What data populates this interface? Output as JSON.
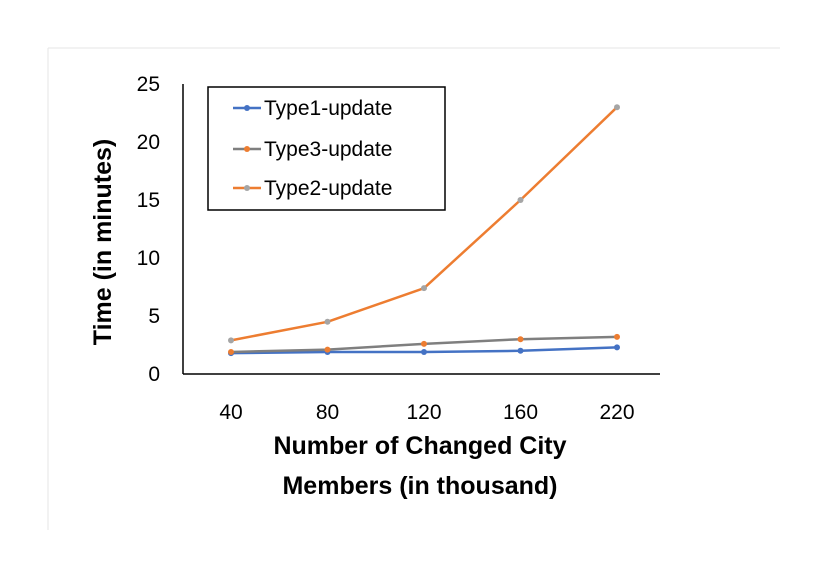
{
  "chart_data": {
    "type": "line",
    "categories": [
      "40",
      "80",
      "120",
      "160",
      "220"
    ],
    "series": [
      {
        "name": "Type1-update",
        "values": [
          1.8,
          1.9,
          1.9,
          2.0,
          2.3
        ],
        "line_color": "#4472C4",
        "marker_color": "#4472C4"
      },
      {
        "name": "Type3-update",
        "values": [
          1.9,
          2.1,
          2.6,
          3.0,
          3.2
        ],
        "line_color": "#7F7F7F",
        "marker_color": "#ED7D31"
      },
      {
        "name": "Type2-update",
        "values": [
          2.9,
          4.5,
          7.4,
          15.0,
          23.0
        ],
        "line_color": "#ED7D31",
        "marker_color": "#A5A5A5"
      }
    ],
    "xlabel": [
      "Number of Changed City",
      "Members (in thousand)"
    ],
    "ylabel": "Time (in minutes)",
    "ylim": [
      0,
      25
    ],
    "yticks": [
      "0",
      "5",
      "10",
      "15",
      "20",
      "25"
    ],
    "grid": false,
    "legend_position": "top-left"
  }
}
